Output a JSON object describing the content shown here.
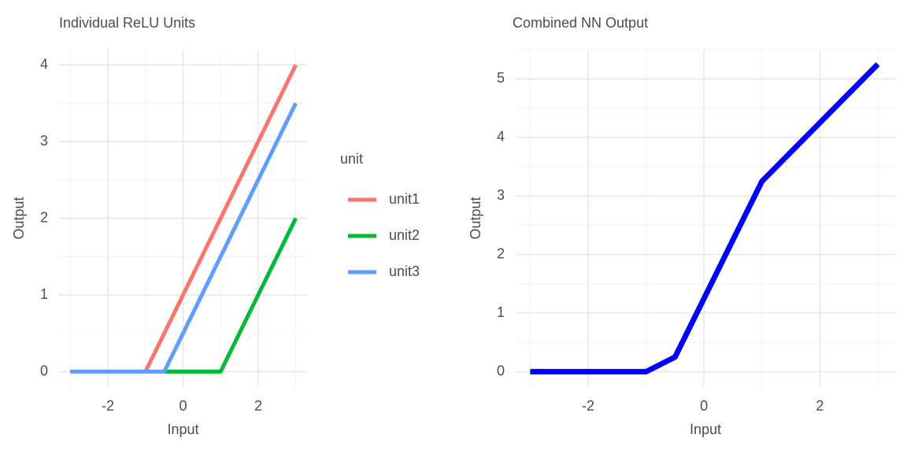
{
  "chart_data": [
    {
      "type": "line",
      "title": "Individual ReLU Units",
      "x_label": "Input",
      "y_label": "Output",
      "x": [
        -3,
        -1,
        -0.5,
        1,
        3
      ],
      "series": [
        {
          "name": "unit1",
          "color": "#F8766D",
          "values": [
            0,
            0,
            0.5,
            2,
            4
          ]
        },
        {
          "name": "unit2",
          "color": "#00BA38",
          "values": [
            0,
            0,
            0,
            0,
            2
          ]
        },
        {
          "name": "unit3",
          "color": "#619CFF",
          "values": [
            0,
            0,
            0,
            1.5,
            3.5
          ]
        }
      ],
      "legend_title": "unit",
      "legend": "right",
      "xlim": [
        -3.3,
        3.3
      ],
      "xticks": [
        -2,
        0,
        2
      ],
      "ylim": [
        -0.2,
        4.2
      ],
      "yticks": [
        0,
        1,
        2,
        3,
        4
      ],
      "grid": true
    },
    {
      "type": "line",
      "title": "Combined NN Output",
      "x_label": "Input",
      "y_label": "Output",
      "x": [
        -3,
        -1,
        -0.5,
        1,
        3
      ],
      "series": [
        {
          "color": "#0000FF",
          "values": [
            0,
            0,
            0.25,
            3.25,
            5.25
          ]
        }
      ],
      "xlim": [
        -3.25,
        3.3
      ],
      "xticks": [
        -2,
        0,
        2
      ],
      "ylim": [
        -0.26,
        5.5
      ],
      "yticks": [
        0,
        1,
        2,
        3,
        4,
        5
      ],
      "grid": true
    }
  ]
}
